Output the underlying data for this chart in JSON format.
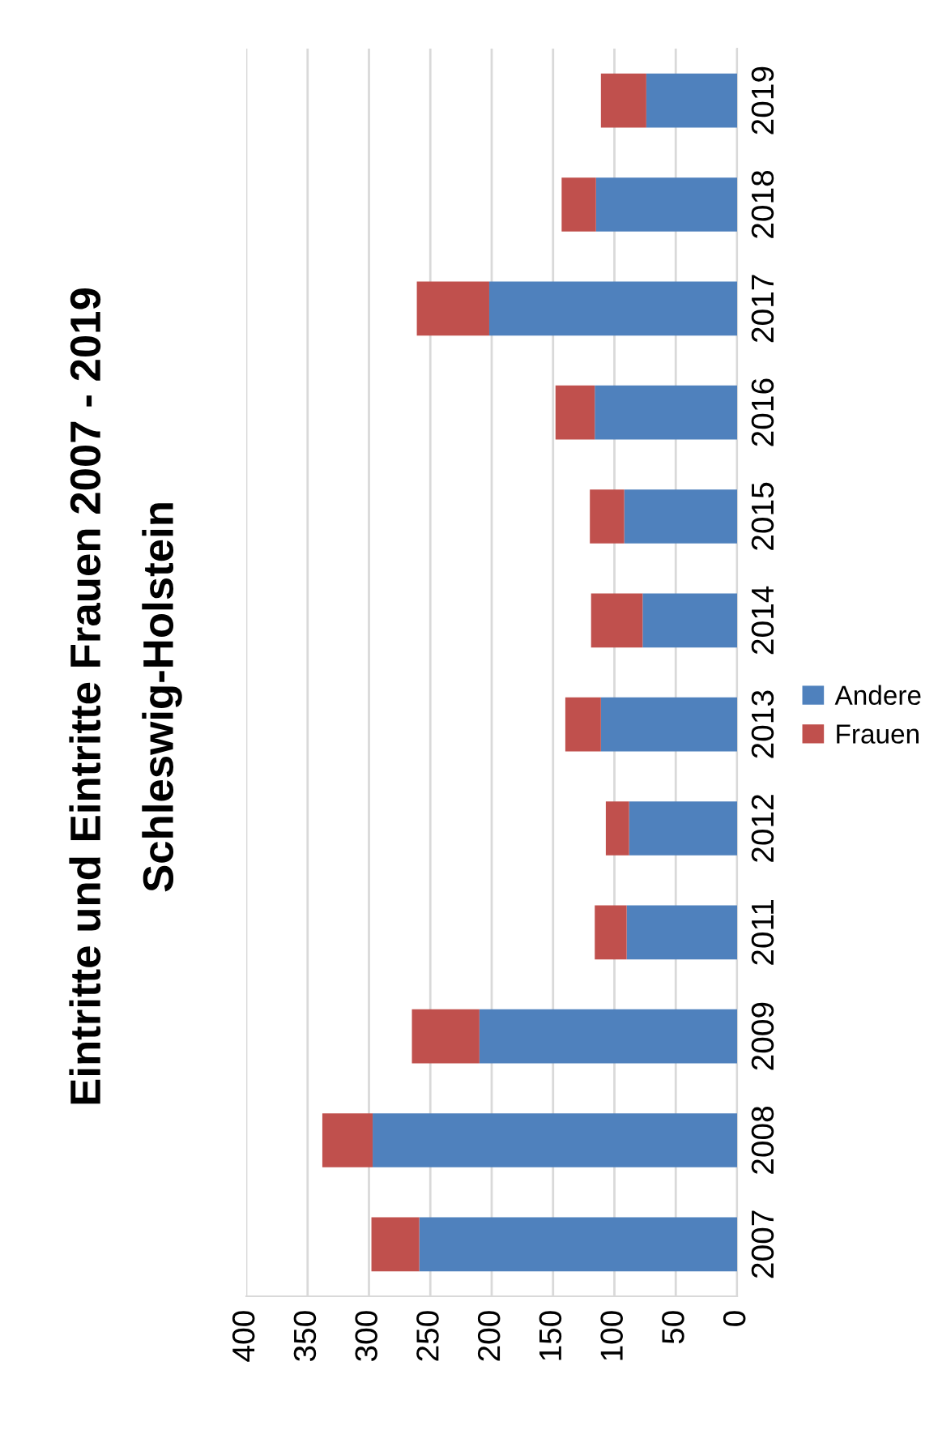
{
  "chart_data": {
    "type": "bar",
    "orientation": "horizontal",
    "stacked": true,
    "title": "Eintritte und Eintritte Frauen 2007 - 2019",
    "subtitle": "Schleswig-Holstein",
    "categories": [
      "2019",
      "2018",
      "2017",
      "2016",
      "2015",
      "2014",
      "2013",
      "2012",
      "2011",
      "2009",
      "2008",
      "2007"
    ],
    "series": [
      {
        "name": "Andere",
        "color": "#4f81bd",
        "values": [
          74,
          115,
          202,
          116,
          92,
          77,
          111,
          88,
          90,
          210,
          297,
          259
        ]
      },
      {
        "name": "Frauen",
        "color": "#c0504d",
        "values": [
          37,
          28,
          59,
          32,
          28,
          42,
          29,
          19,
          26,
          55,
          41,
          39
        ]
      }
    ],
    "xlim": [
      400,
      0
    ],
    "xticks": [
      0,
      50,
      100,
      150,
      200,
      250,
      300,
      350,
      400
    ],
    "grid": "x",
    "legend": "right"
  }
}
